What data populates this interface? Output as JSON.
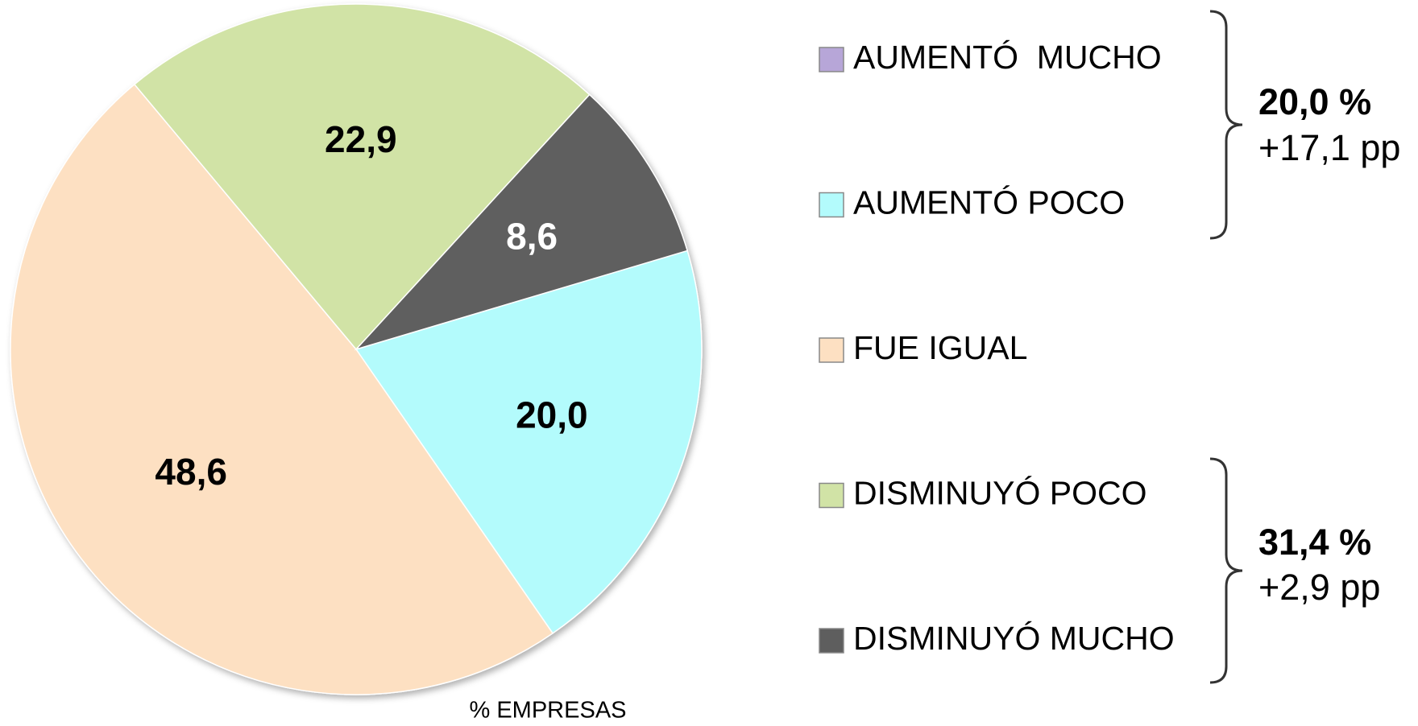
{
  "chart_data": {
    "type": "pie",
    "categories": [
      "AUMENTÓ  MUCHO",
      "AUMENTÓ POCO",
      "FUE IGUAL",
      "DISMINUYÓ POCO",
      "DISMINUYÓ MUCHO"
    ],
    "values": [
      0,
      20.0,
      48.6,
      22.9,
      8.6
    ],
    "value_labels": [
      null,
      "20,0",
      "48,6",
      "22,9",
      "8,6"
    ],
    "colors": [
      "#b7a6d8",
      "#b3fbfc",
      "#fde0c2",
      "#d1e3a6",
      "#5e5e5e"
    ],
    "label_colors": [
      "#000000",
      "#000000",
      "#000000",
      "#000000",
      "#ffffff"
    ],
    "annotations": [
      "20,0 %",
      "+17,1 pp",
      "31,4 %",
      "+2,9 pp"
    ],
    "xlabel": "% EMPRESAS",
    "legend": "right"
  }
}
